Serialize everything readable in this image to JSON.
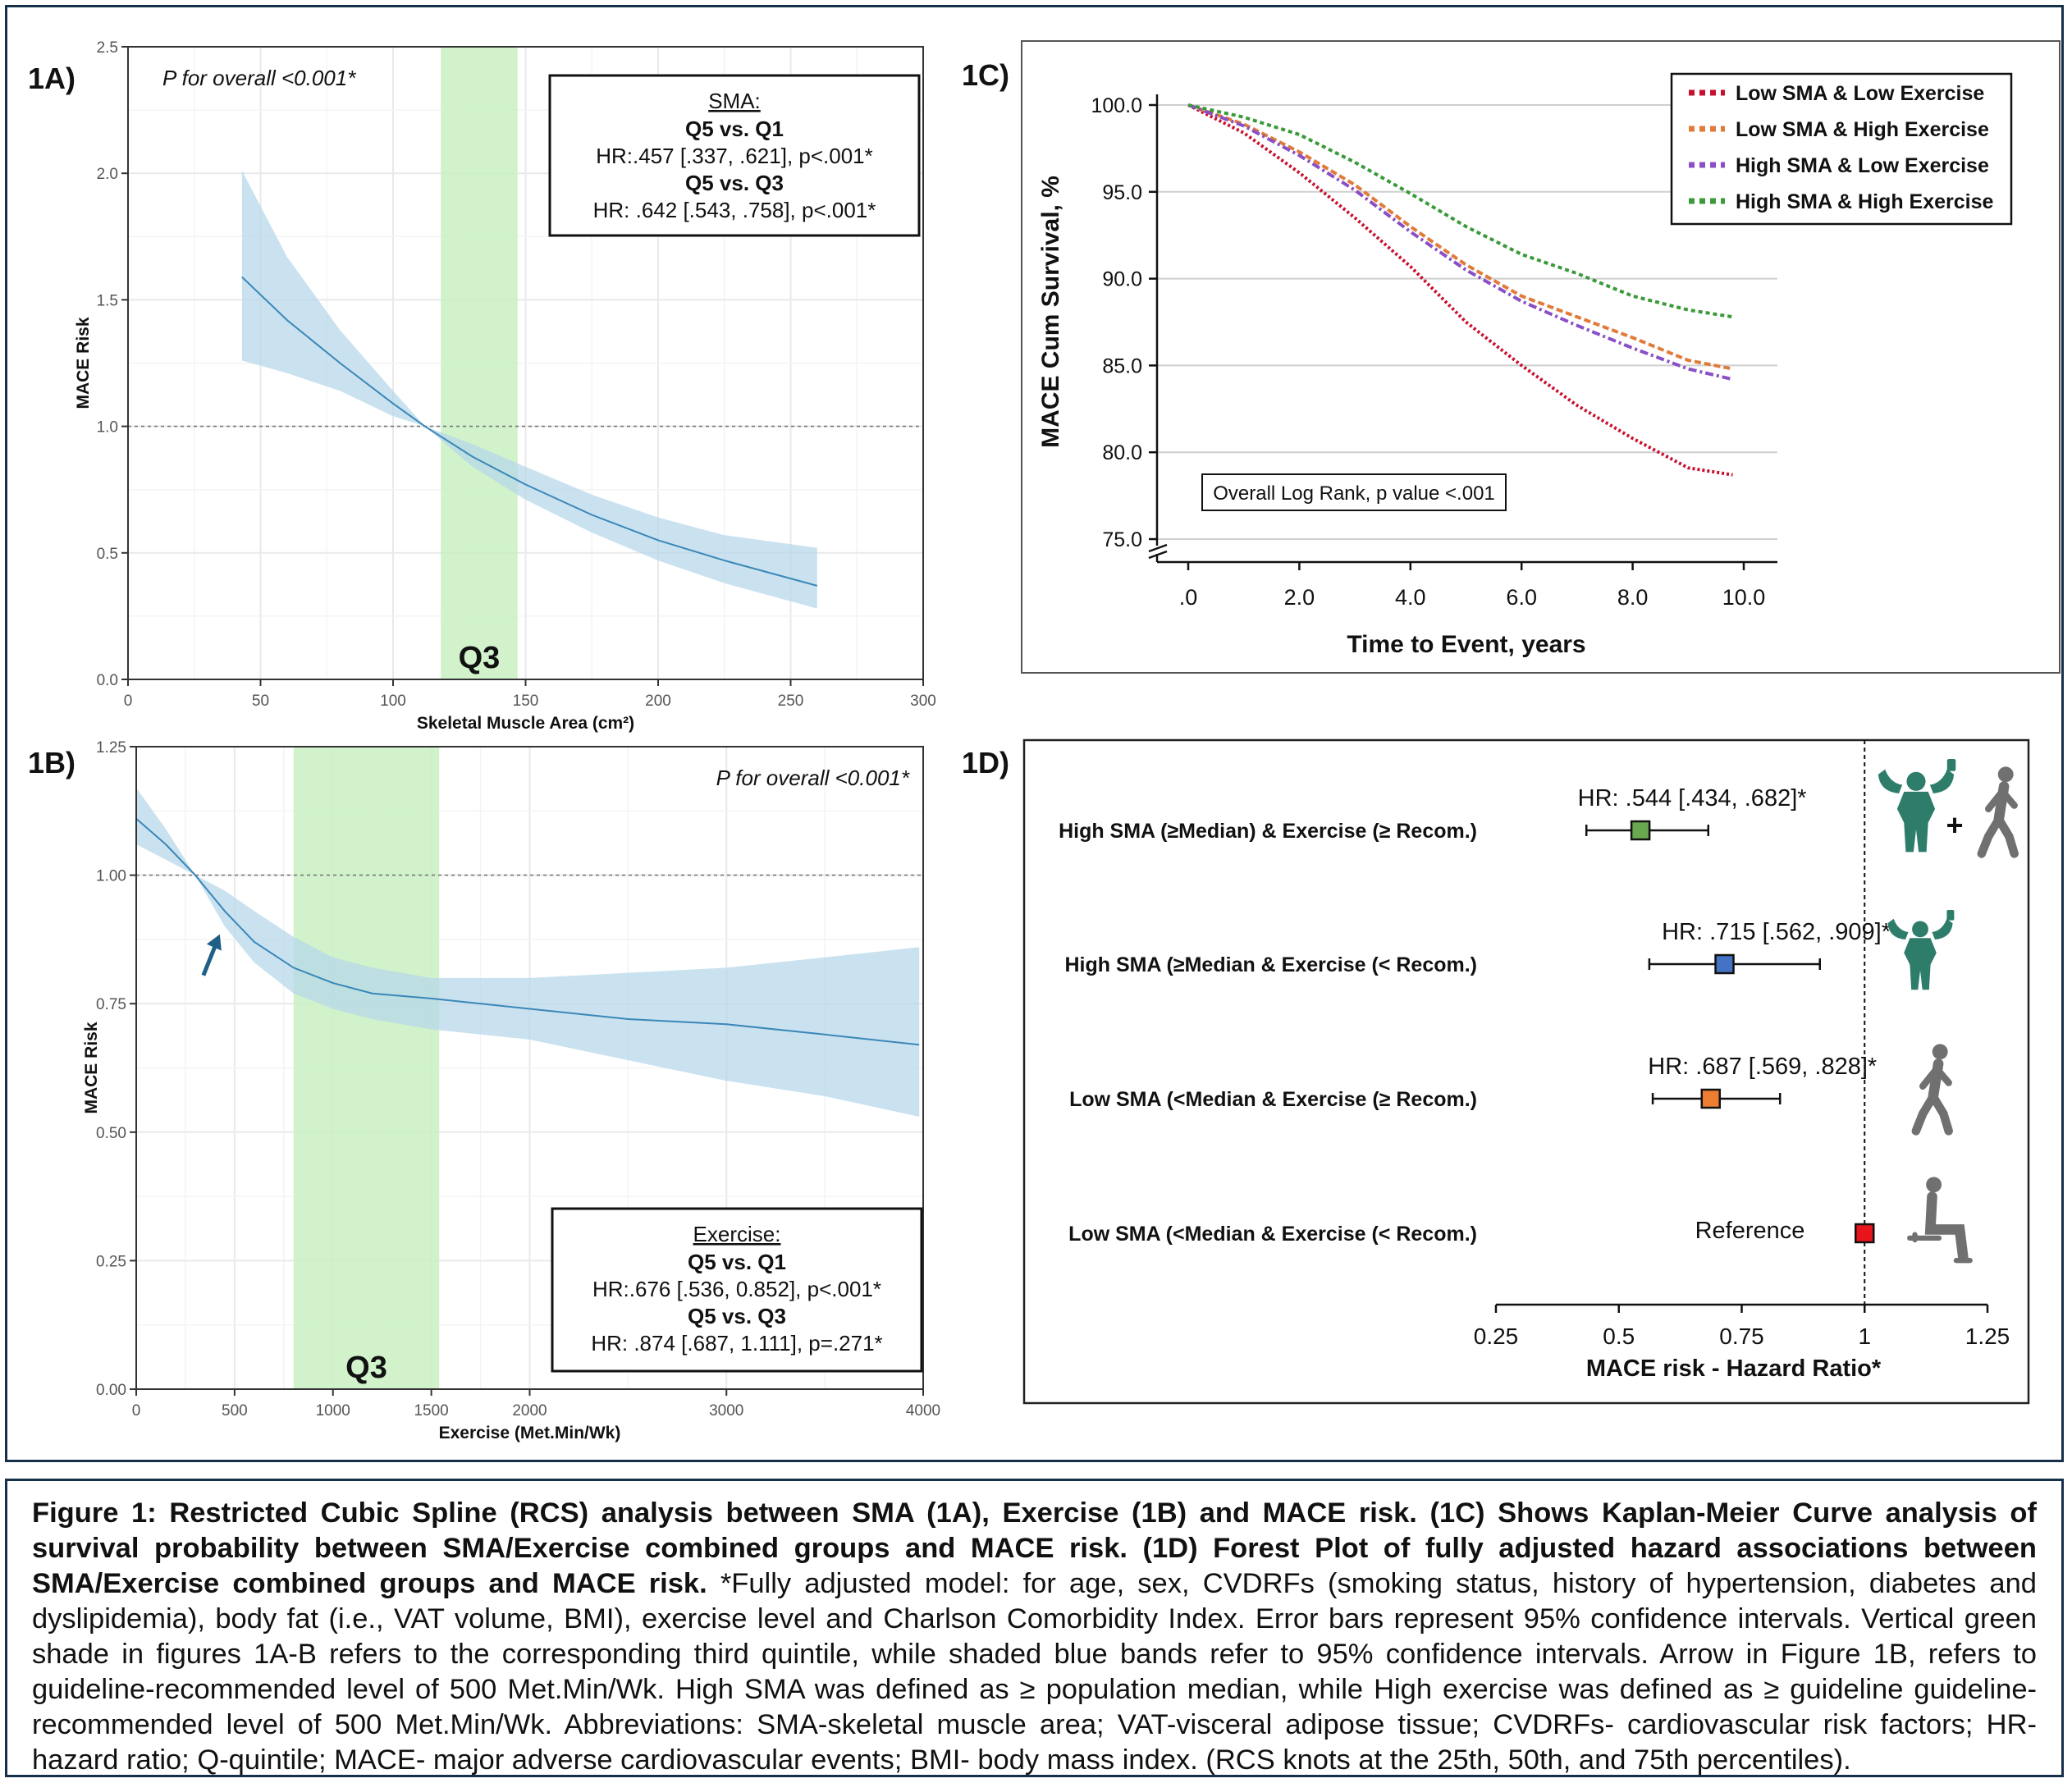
{
  "colors": {
    "band_blue": "#b6d7ea",
    "line_blue": "#3a87b8",
    "q3_green": "#c9f0c2",
    "grid": "#e9e9e9",
    "arrow": "#1f5f86",
    "km_red": "#c8102e",
    "km_orange": "#e07b39",
    "km_purple": "#8a4fc7",
    "km_green": "#3a9a3a",
    "forest_green": "#6aa84f",
    "forest_blue": "#4472c4",
    "forest_orange": "#ed7d31",
    "forest_red": "#e8141b",
    "icon_teal": "#2e7d6b",
    "icon_grey": "#707070"
  },
  "chart_data": [
    {
      "id": "1A",
      "type": "line",
      "panel_label": "1A)",
      "annotation": "P for overall <0.001*",
      "xlabel": "Skeletal Muscle Area (cm²)",
      "ylabel": "MACE Risk",
      "xlim": [
        0,
        300
      ],
      "ylim": [
        0,
        2.5
      ],
      "xticks": [
        0,
        50,
        100,
        150,
        200,
        250,
        300
      ],
      "xtick_labels": [
        "0",
        "50",
        "100",
        "150",
        "200",
        "250",
        "300"
      ],
      "yticks": [
        0,
        0.5,
        1.0,
        1.5,
        2.0,
        2.5
      ],
      "ytick_labels": [
        "0.0",
        "0.5",
        "1.0",
        "1.5",
        "2.0",
        "2.5"
      ],
      "reference_line": 1.0,
      "shaded_region": {
        "label": "Q3",
        "x": [
          118,
          147
        ]
      },
      "series": [
        {
          "name": "HR estimate",
          "x": [
            43,
            60,
            80,
            100,
            112,
            130,
            150,
            175,
            200,
            225,
            260
          ],
          "y": [
            1.59,
            1.42,
            1.25,
            1.09,
            1.0,
            0.88,
            0.77,
            0.65,
            0.55,
            0.47,
            0.37
          ],
          "lower": [
            1.26,
            1.21,
            1.14,
            1.04,
            1.0,
            0.84,
            0.71,
            0.58,
            0.47,
            0.38,
            0.28
          ],
          "upper": [
            2.01,
            1.67,
            1.38,
            1.14,
            1.0,
            0.93,
            0.84,
            0.73,
            0.64,
            0.57,
            0.52
          ]
        }
      ],
      "legend_box": {
        "title": "SMA:",
        "lines": [
          {
            "text": "Q5 vs. Q1",
            "bold": true
          },
          {
            "text": "HR:.457 [.337, .621], p<.001*",
            "bold": false
          },
          {
            "text": "Q5 vs. Q3",
            "bold": true
          },
          {
            "text": "HR: .642 [.543, .758], p<.001*",
            "bold": false
          }
        ]
      }
    },
    {
      "id": "1B",
      "type": "line",
      "panel_label": "1B)",
      "annotation": "P for overall <0.001*",
      "xlabel": "Exercise (Met.Min/Wk)",
      "ylabel": "MACE Risk",
      "xlim": [
        0,
        4000
      ],
      "ylim": [
        0,
        1.25
      ],
      "xticks": [
        0,
        500,
        1000,
        1500,
        2000,
        3000,
        4000
      ],
      "xtick_labels": [
        "0",
        "500",
        "1000",
        "1500",
        "2000",
        "3000",
        "4000"
      ],
      "yticks": [
        0,
        0.25,
        0.5,
        0.75,
        1.0,
        1.25
      ],
      "ytick_labels": [
        "0.00",
        "0.25",
        "0.50",
        "0.75",
        "1.00",
        "1.25"
      ],
      "reference_line": 1.0,
      "shaded_region": {
        "label": "Q3",
        "x": [
          800,
          1540
        ]
      },
      "arrow_at": 500,
      "series": [
        {
          "name": "HR estimate",
          "x": [
            0,
            150,
            300,
            450,
            600,
            800,
            1000,
            1200,
            1500,
            2000,
            2500,
            3000,
            3500,
            3980
          ],
          "y": [
            1.11,
            1.06,
            1.0,
            0.93,
            0.87,
            0.82,
            0.79,
            0.77,
            0.76,
            0.74,
            0.72,
            0.71,
            0.69,
            0.67
          ],
          "lower": [
            1.06,
            1.03,
            1.0,
            0.9,
            0.83,
            0.77,
            0.74,
            0.72,
            0.7,
            0.68,
            0.64,
            0.6,
            0.57,
            0.53
          ],
          "upper": [
            1.17,
            1.09,
            1.0,
            0.97,
            0.93,
            0.88,
            0.84,
            0.82,
            0.8,
            0.8,
            0.81,
            0.82,
            0.84,
            0.86
          ]
        }
      ],
      "legend_box": {
        "title": "Exercise:",
        "lines": [
          {
            "text": "Q5 vs. Q1",
            "bold": true
          },
          {
            "text": "HR:.676 [.536, 0.852], p<.001*",
            "bold": false
          },
          {
            "text": "Q5 vs. Q3",
            "bold": true
          },
          {
            "text": "HR: .874 [.687, 1.111], p=.271*",
            "bold": false
          }
        ]
      }
    },
    {
      "id": "1C",
      "type": "line",
      "panel_label": "1C)",
      "xlabel": "Time to Event, years",
      "ylabel": "MACE Cum Survival, %",
      "xlim": [
        0,
        10.5
      ],
      "ylim": [
        75,
        100
      ],
      "xticks": [
        0,
        2,
        4,
        6,
        8,
        10
      ],
      "xtick_labels": [
        ".0",
        "2.0",
        "4.0",
        "6.0",
        "8.0",
        "10.0"
      ],
      "yticks": [
        75,
        80,
        85,
        90,
        95,
        100
      ],
      "ytick_labels": [
        "75.0",
        "80.0",
        "85.0",
        "90.0",
        "95.0",
        "100.0"
      ],
      "annotation": "Overall Log Rank, p value <.001",
      "series": [
        {
          "name": "Low SMA & Low Exercise",
          "color_key": "km_red",
          "x": [
            0,
            1,
            2,
            3,
            4,
            5,
            6,
            7,
            8,
            9,
            9.8
          ],
          "y": [
            100,
            98.4,
            96.1,
            93.5,
            90.7,
            87.5,
            85.0,
            82.7,
            80.8,
            79.1,
            78.7
          ]
        },
        {
          "name": "Low SMA & High Exercise",
          "color_key": "km_orange",
          "x": [
            0,
            1,
            2,
            3,
            4,
            5,
            6,
            7,
            8,
            9,
            9.8
          ],
          "y": [
            100,
            98.9,
            97.3,
            95.4,
            93.0,
            90.8,
            89.0,
            87.8,
            86.6,
            85.3,
            84.8
          ]
        },
        {
          "name": "High SMA & Low Exercise",
          "color_key": "km_purple",
          "x": [
            0,
            1,
            2,
            3,
            4,
            5,
            6,
            7,
            8,
            9,
            9.8
          ],
          "y": [
            100,
            98.8,
            97.1,
            95.1,
            92.7,
            90.5,
            88.7,
            87.3,
            86.0,
            84.8,
            84.2
          ]
        },
        {
          "name": "High SMA & High Exercise",
          "color_key": "km_green",
          "x": [
            0,
            1,
            2,
            3,
            4,
            5,
            6,
            7,
            8,
            9,
            9.8
          ],
          "y": [
            100,
            99.3,
            98.3,
            96.7,
            94.9,
            93.0,
            91.4,
            90.3,
            89.0,
            88.2,
            87.8
          ]
        }
      ]
    },
    {
      "id": "1D",
      "type": "forest",
      "panel_label": "1D)",
      "xlabel": "MACE risk - Hazard Ratio*",
      "xlim": [
        0.25,
        1.25
      ],
      "xticks": [
        0.25,
        0.5,
        0.75,
        1,
        1.25
      ],
      "xtick_labels": [
        "0.25",
        "0.5",
        "0.75",
        "1",
        "1.25"
      ],
      "reference_line": 1,
      "rows": [
        {
          "label": "High SMA (≥Median) & Exercise (≥ Recom.)",
          "hr": 0.544,
          "lo": 0.434,
          "hi": 0.682,
          "hr_text": "HR: .544 [.434, .682]*",
          "color_key": "forest_green",
          "icon": "muscle-and-walker"
        },
        {
          "label": "High SMA (≥Median & Exercise (< Recom.)",
          "hr": 0.715,
          "lo": 0.562,
          "hi": 0.909,
          "hr_text": "HR: .715 [.562, .909]*",
          "color_key": "forest_blue",
          "icon": "muscle"
        },
        {
          "label": "Low SMA (<Median & Exercise (≥ Recom.)",
          "hr": 0.687,
          "lo": 0.569,
          "hi": 0.828,
          "hr_text": "HR: .687 [.569, .828]*",
          "color_key": "forest_orange",
          "icon": "walker"
        },
        {
          "label": "Low SMA (<Median & Exercise (< Recom.)",
          "hr": 1,
          "lo": 1,
          "hi": 1,
          "hr_text": "Reference",
          "color_key": "forest_red",
          "icon": "sitter"
        }
      ]
    }
  ],
  "caption": {
    "bold_text": "Figure 1: Restricted Cubic Spline (RCS) analysis between SMA (1A), Exercise (1B) and MACE risk. (1C) Shows Kaplan-Meier Curve analysis of survival probability between SMA/Exercise combined groups and MACE risk. (1D) Forest Plot of fully adjusted hazard associations between SMA/Exercise combined groups and MACE risk.",
    "body_text": " *Fully adjusted model: for age, sex, CVDRFs (smoking status, history of hypertension, diabetes and dyslipidemia), body fat (i.e., VAT volume, BMI), exercise level and Charlson Comorbidity Index. Error bars represent 95% confidence intervals. Vertical green shade in figures 1A-B refers to the corresponding third quintile, while shaded blue bands refer to 95% confidence intervals. Arrow in Figure 1B, refers to guideline-recommended level of 500 Met.Min/Wk. High SMA was defined as ≥ population median, while High exercise was defined as ≥ guideline guideline-recommended level of 500 Met.Min/Wk. Abbreviations: SMA-skeletal muscle area; VAT-visceral adipose tissue; CVDRFs- cardiovascular risk factors; HR-hazard ratio; Q-quintile; MACE- major adverse cardiovascular events; BMI- body mass index. (RCS knots at the 25th, 50th, and 75th percentiles)."
  }
}
